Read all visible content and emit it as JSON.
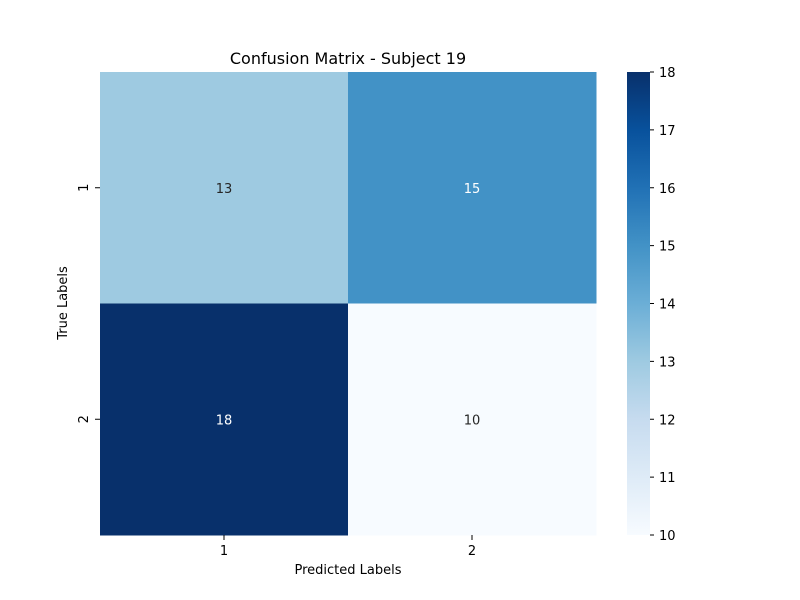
{
  "chart_data": {
    "type": "heatmap",
    "title": "Confusion Matrix - Subject 19",
    "xlabel": "Predicted Labels",
    "ylabel": "True Labels",
    "x_categories": [
      "1",
      "2"
    ],
    "y_categories": [
      "1",
      "2"
    ],
    "values": [
      [
        13,
        15
      ],
      [
        18,
        10
      ]
    ],
    "colormap": "Blues",
    "colorbar": {
      "min": 10,
      "max": 18,
      "ticks": [
        10,
        11,
        12,
        13,
        14,
        15,
        16,
        17,
        18
      ],
      "position": "right"
    },
    "grid": false,
    "annotated": true
  }
}
